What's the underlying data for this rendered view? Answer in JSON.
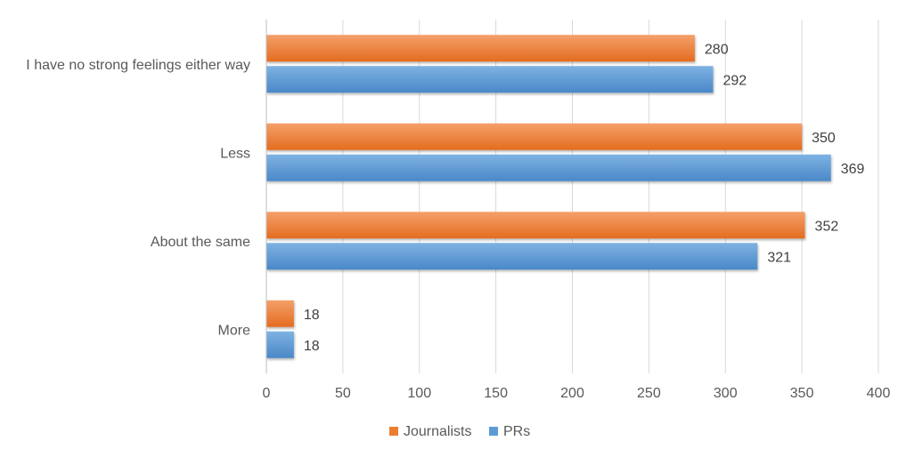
{
  "chart_data": {
    "type": "bar",
    "orientation": "horizontal",
    "categories": [
      "I have no strong feelings either way",
      "Less",
      "About the same",
      "More"
    ],
    "series": [
      {
        "name": "Journalists",
        "values": [
          280,
          350,
          352,
          18
        ],
        "color": "#ED7D31"
      },
      {
        "name": "PRs",
        "values": [
          292,
          369,
          321,
          18
        ],
        "color": "#5B9BD5"
      }
    ],
    "xlim": [
      0,
      400
    ],
    "xticks": [
      0,
      50,
      100,
      150,
      200,
      250,
      300,
      350,
      400
    ],
    "grid": "vertical",
    "legend": "bottom",
    "data_labels": true,
    "title": "",
    "xlabel": "",
    "ylabel": ""
  }
}
